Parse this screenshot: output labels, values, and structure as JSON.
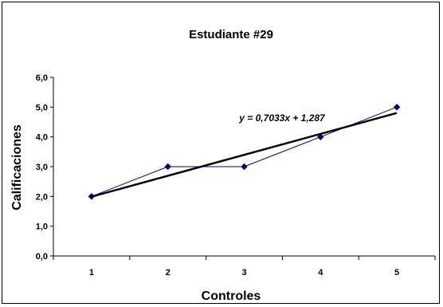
{
  "chart_data": {
    "type": "line",
    "title": "Estudiante #29",
    "xlabel": "Controles",
    "ylabel": "Calificaciones",
    "categories": [
      "1",
      "2",
      "3",
      "4",
      "5"
    ],
    "x": [
      1,
      2,
      3,
      4,
      5
    ],
    "ylim": [
      0,
      6
    ],
    "y_ticks": [
      "0,0",
      "1,0",
      "2,0",
      "3,0",
      "4,0",
      "5,0",
      "6,0"
    ],
    "y_tick_values": [
      0,
      1,
      2,
      3,
      4,
      5,
      6
    ],
    "series": [
      {
        "values": [
          2.0,
          3.0,
          3.0,
          4.0,
          5.0
        ],
        "color": "#000080",
        "marker": "diamond"
      }
    ],
    "trendline": {
      "slope": 0.7033,
      "intercept": 1.287,
      "equation": "y = 0,7033x + 1,287",
      "color": "#000000"
    },
    "grid": false,
    "legend": "none"
  }
}
